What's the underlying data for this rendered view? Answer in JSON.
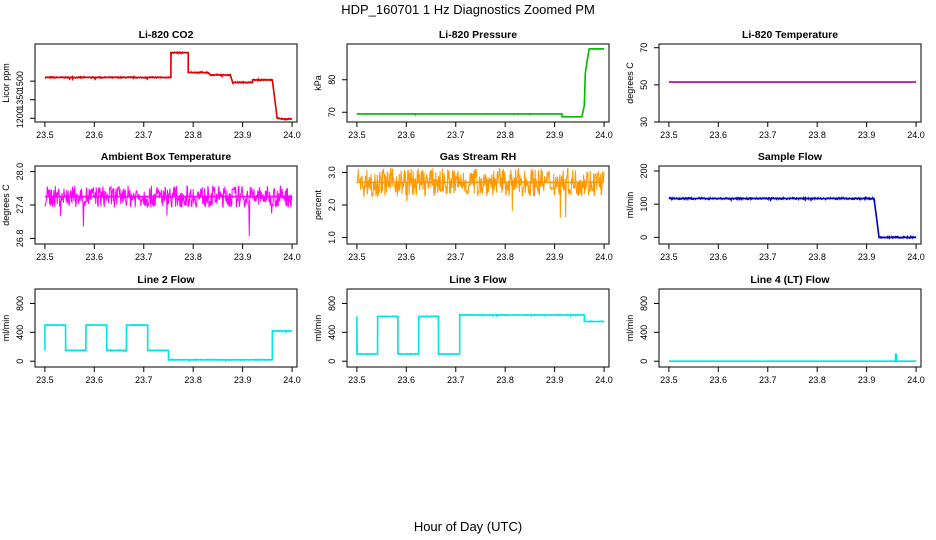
{
  "figure": {
    "title": "HDP_160701  1 Hz Diagnostics Zoomed PM",
    "xlabel": "Hour of Day (UTC)"
  },
  "chart_data": [
    {
      "type": "line",
      "title": "Li-820 CO2",
      "ylabel": "Licor ppm",
      "color": "#dd0000",
      "xlim": [
        23.48,
        24.01
      ],
      "ylim": [
        1170,
        1800
      ],
      "xticks": [
        "23.5",
        "23.6",
        "23.7",
        "23.8",
        "23.9",
        "24.0"
      ],
      "yticks": [
        "1200",
        "1350",
        "1500"
      ],
      "noise": 0.012,
      "series": [
        {
          "name": "CO2",
          "x": [
            23.5,
            23.755,
            23.755,
            23.79,
            23.79,
            23.83,
            23.835,
            23.875,
            23.88,
            23.92,
            23.92,
            23.96,
            23.97,
            23.98,
            24.0
          ],
          "y": [
            1530,
            1530,
            1730,
            1730,
            1570,
            1570,
            1550,
            1550,
            1490,
            1490,
            1510,
            1510,
            1200,
            1195,
            1195
          ]
        }
      ]
    },
    {
      "type": "line",
      "title": "Li-820 Pressure",
      "ylabel": "kPa",
      "color": "#00bb00",
      "xlim": [
        23.48,
        24.01
      ],
      "ylim": [
        67,
        91
      ],
      "xticks": [
        "23.5",
        "23.6",
        "23.7",
        "23.8",
        "23.9",
        "24.0"
      ],
      "yticks": [
        "70",
        "80"
      ],
      "noise": 0.004,
      "series": [
        {
          "name": "Pressure",
          "x": [
            23.5,
            23.915,
            23.915,
            23.955,
            23.96,
            23.962,
            23.966,
            23.97,
            23.98,
            24.0
          ],
          "y": [
            69.5,
            69.5,
            68.6,
            68.6,
            72.0,
            82.0,
            86.0,
            89.5,
            89.5,
            89.5
          ]
        }
      ]
    },
    {
      "type": "line",
      "title": "Li-820 Temperature",
      "ylabel": "degrees C",
      "color": "#aa00aa",
      "xlim": [
        23.48,
        24.01
      ],
      "ylim": [
        30,
        72
      ],
      "xticks": [
        "23.5",
        "23.6",
        "23.7",
        "23.8",
        "23.9",
        "24.0"
      ],
      "yticks": [
        "30",
        "50",
        "70"
      ],
      "noise": 0,
      "series": [
        {
          "name": "Temperature",
          "x": [
            23.5,
            24.0
          ],
          "y": [
            51.5,
            51.5
          ]
        }
      ]
    },
    {
      "type": "line",
      "title": "Ambient Box Temperature",
      "ylabel": "degrees C",
      "color": "#ff00ff",
      "xlim": [
        23.48,
        24.01
      ],
      "ylim": [
        26.7,
        28.1
      ],
      "xticks": [
        "23.5",
        "23.6",
        "23.7",
        "23.8",
        "23.9",
        "24.0"
      ],
      "yticks": [
        "26.8",
        "27.4",
        "28.0"
      ],
      "noise": 0.14,
      "series": [
        {
          "name": "Box Temperature",
          "x": [
            23.5,
            24.0
          ],
          "y": [
            27.55,
            27.55
          ]
        }
      ]
    },
    {
      "type": "line",
      "title": "Gas Stream RH",
      "ylabel": "percent",
      "color": "#ff9900",
      "xlim": [
        23.48,
        24.01
      ],
      "ylim": [
        0.8,
        3.2
      ],
      "xticks": [
        "23.5",
        "23.6",
        "23.7",
        "23.8",
        "23.9",
        "24.0"
      ],
      "yticks": [
        "1.0",
        "2.0",
        "3.0"
      ],
      "noise": 0.18,
      "series": [
        {
          "name": "RH",
          "x": [
            23.5,
            24.0
          ],
          "y": [
            2.7,
            2.7
          ]
        }
      ]
    },
    {
      "type": "line",
      "title": "Sample Flow",
      "ylabel": "ml/min",
      "color": "#0000cc",
      "xlim": [
        23.48,
        24.01
      ],
      "ylim": [
        -20,
        215
      ],
      "xticks": [
        "23.5",
        "23.6",
        "23.7",
        "23.8",
        "23.9",
        "24.0"
      ],
      "yticks": [
        "0",
        "100",
        "200"
      ],
      "noise": 0.015,
      "series": [
        {
          "name": "Sample Flow",
          "x": [
            23.5,
            23.915,
            23.92,
            23.925,
            24.0
          ],
          "y": [
            117,
            117,
            60,
            0,
            0
          ]
        }
      ]
    },
    {
      "type": "line",
      "title": "Line 2 Flow",
      "ylabel": "ml/min",
      "color": "#00e5e5",
      "xlim": [
        23.48,
        24.01
      ],
      "ylim": [
        -80,
        1000
      ],
      "xticks": [
        "23.5",
        "23.6",
        "23.7",
        "23.8",
        "23.9",
        "24.0"
      ],
      "yticks": [
        "0",
        "400",
        "800"
      ],
      "noise": 0.008,
      "series": [
        {
          "name": "Line 2",
          "x": [
            23.5,
            23.5,
            23.542,
            23.542,
            23.583,
            23.583,
            23.625,
            23.625,
            23.665,
            23.665,
            23.708,
            23.708,
            23.75,
            23.75,
            23.96,
            23.96,
            24.0
          ],
          "y": [
            150,
            500,
            500,
            150,
            150,
            500,
            500,
            150,
            150,
            500,
            500,
            150,
            150,
            20,
            20,
            420,
            420
          ]
        }
      ]
    },
    {
      "type": "line",
      "title": "Line 3 Flow",
      "ylabel": "ml/min",
      "color": "#00e5e5",
      "xlim": [
        23.48,
        24.01
      ],
      "ylim": [
        -80,
        1000
      ],
      "xticks": [
        "23.5",
        "23.6",
        "23.7",
        "23.8",
        "23.9",
        "24.0"
      ],
      "yticks": [
        "0",
        "400",
        "800"
      ],
      "noise": 0.008,
      "series": [
        {
          "name": "Line 3",
          "x": [
            23.5,
            23.5,
            23.5,
            23.542,
            23.542,
            23.583,
            23.583,
            23.625,
            23.625,
            23.665,
            23.665,
            23.708,
            23.708,
            23.96,
            23.96,
            24.0
          ],
          "y": [
            620,
            620,
            100,
            100,
            620,
            620,
            100,
            100,
            620,
            620,
            100,
            100,
            640,
            640,
            550,
            550
          ]
        }
      ]
    },
    {
      "type": "line",
      "title": "Line 4 (LT) Flow",
      "ylabel": "ml/min",
      "color": "#00e5e5",
      "xlim": [
        23.48,
        24.01
      ],
      "ylim": [
        -80,
        1000
      ],
      "xticks": [
        "23.5",
        "23.6",
        "23.7",
        "23.8",
        "23.9",
        "24.0"
      ],
      "yticks": [
        "0",
        "400",
        "800"
      ],
      "noise": 0,
      "series": [
        {
          "name": "Line 4",
          "x": [
            23.5,
            23.958,
            23.959,
            23.96,
            23.961,
            24.0
          ],
          "y": [
            0,
            0,
            100,
            100,
            0,
            0
          ]
        }
      ]
    }
  ]
}
